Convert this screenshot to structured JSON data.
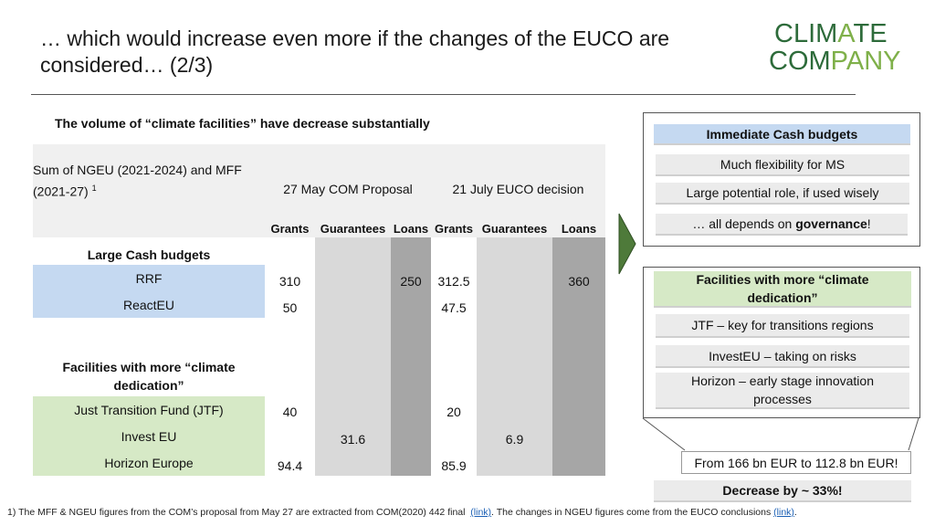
{
  "slide": {
    "title_line1": "… which would increase even more if the changes of the EUCO are",
    "title_line2": "considered… (2/3)",
    "subtitle": "The volume of “climate facilities” have decrease substantially"
  },
  "logo": {
    "part1": "CLIM",
    "part2": "A",
    "part3": "TE",
    "part4": "COM",
    "part5": "PANY"
  },
  "table": {
    "corner_line1": "Sum of NGEU (2021-2024) and MFF",
    "corner_line2": "(2021-27) ",
    "corner_sup": "1",
    "col_group1": "27 May COM Proposal",
    "col_group2": "21 July EUCO decision",
    "sub_headers": [
      "Grants",
      "Guarantees",
      "Loans",
      "Grants",
      "Guarantees",
      "Loans"
    ],
    "section_large": "Large Cash budgets",
    "section_facilities": "Facilities with more “climate dedication”",
    "rows": [
      {
        "label": "RRF",
        "values": [
          "310",
          "",
          "250",
          "312.5",
          "",
          "360"
        ]
      },
      {
        "label": "ReactEU",
        "values": [
          "50",
          "",
          "",
          "47.5",
          "",
          ""
        ]
      },
      {
        "label": "Just Transition Fund (JTF)",
        "values": [
          "40",
          "",
          "",
          "20",
          "",
          ""
        ]
      },
      {
        "label": "Invest EU",
        "values": [
          "",
          "31.6",
          "",
          "",
          "6.9",
          ""
        ]
      },
      {
        "label": "Horizon Europe",
        "values": [
          "94.4",
          "",
          "",
          "85.9",
          "",
          ""
        ]
      }
    ]
  },
  "right_panel": {
    "immediate_header": "Immediate Cash budgets",
    "immediate_items": [
      "Much flexibility for MS",
      "Large potential role, if used wisely"
    ],
    "governance_prefix": "… all depends on ",
    "governance_bold": "governance",
    "governance_suffix": "!",
    "facilities_header": "Facilities with more “climate dedication”",
    "facilities_items": [
      "JTF – key for transitions regions",
      "InvestEU – taking on risks",
      "Horizon – early stage innovation processes"
    ],
    "result_text": "From 166 bn EUR to 112.8 bn EUR!",
    "decrease_text": "Decrease by ~ 33%!"
  },
  "footnote": {
    "part1": "1) The MFF & NGEU figures from the COM’s proposal from May 27 are extracted from COM(2020) 442 final  ",
    "link1": "(link)",
    "part2": ". The changes in NGEU figures come from the EUCO conclusions ",
    "link2": "(link)",
    "part3": "."
  },
  "colors": {
    "accent_green": "#2d6b3a",
    "blue_row": "#c5d9f1",
    "green_row": "#d6e9c6",
    "arrow_green": "#4e7a3a"
  }
}
